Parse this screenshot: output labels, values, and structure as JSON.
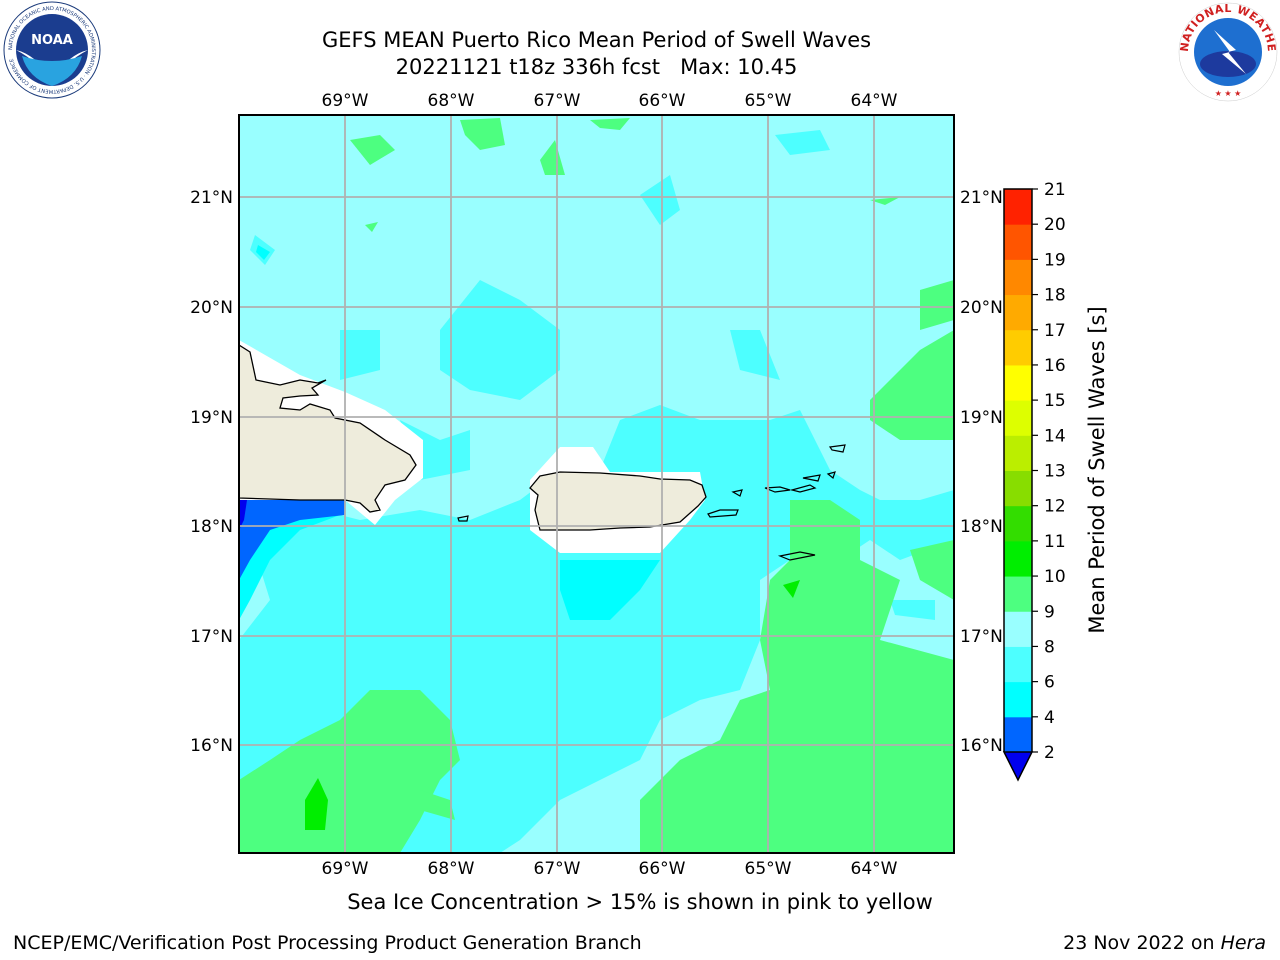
{
  "title": {
    "line1": "GEFS MEAN Puerto Rico Mean Period of Swell Waves",
    "line2": "20221121 t18z 336h fcst   Max: 10.45"
  },
  "logos": {
    "noaa": {
      "text": "NOAA",
      "ring_text": "NATIONAL OCEANIC AND ATMOSPHERIC ADMINISTRATION · U.S. DEPARTMENT OF COMMERCE"
    },
    "nws": {
      "ring_text": "NATIONAL WEATHER SERVICE"
    }
  },
  "map": {
    "lon_labels": [
      "69°W",
      "68°W",
      "67°W",
      "66°W",
      "65°W",
      "64°W"
    ],
    "lat_labels": [
      "21°N",
      "20°N",
      "19°N",
      "18°N",
      "17°N",
      "16°N"
    ],
    "lon_range": [
      -70.0,
      -63.25
    ],
    "lat_range": [
      15.0,
      21.75
    ],
    "land_color": "#eeecdc",
    "background_band_color": "#99ffff"
  },
  "colorbar": {
    "label": "Mean Period of Swell Waves [s]",
    "ticks": [
      "2",
      "4",
      "6",
      "8",
      "9",
      "10",
      "11",
      "12",
      "13",
      "14",
      "15",
      "16",
      "17",
      "18",
      "19",
      "20",
      "21"
    ],
    "colors": [
      "#0066ff",
      "#00ffff",
      "#4dffff",
      "#99ffff",
      "#4dff80",
      "#00ee00",
      "#33dd00",
      "#88dd00",
      "#bbee00",
      "#ddff00",
      "#ffff00",
      "#ffcc00",
      "#ffaa00",
      "#ff8800",
      "#ff5500",
      "#ff2200"
    ],
    "under_color": "#0000ee"
  },
  "footer": {
    "note": "Sea Ice Concentration > 15% is shown in pink to yellow",
    "left": "NCEP/EMC/Verification Post Processing Product Generation Branch",
    "right_prefix": "23 Nov 2022 on ",
    "right_host": "Hera"
  }
}
